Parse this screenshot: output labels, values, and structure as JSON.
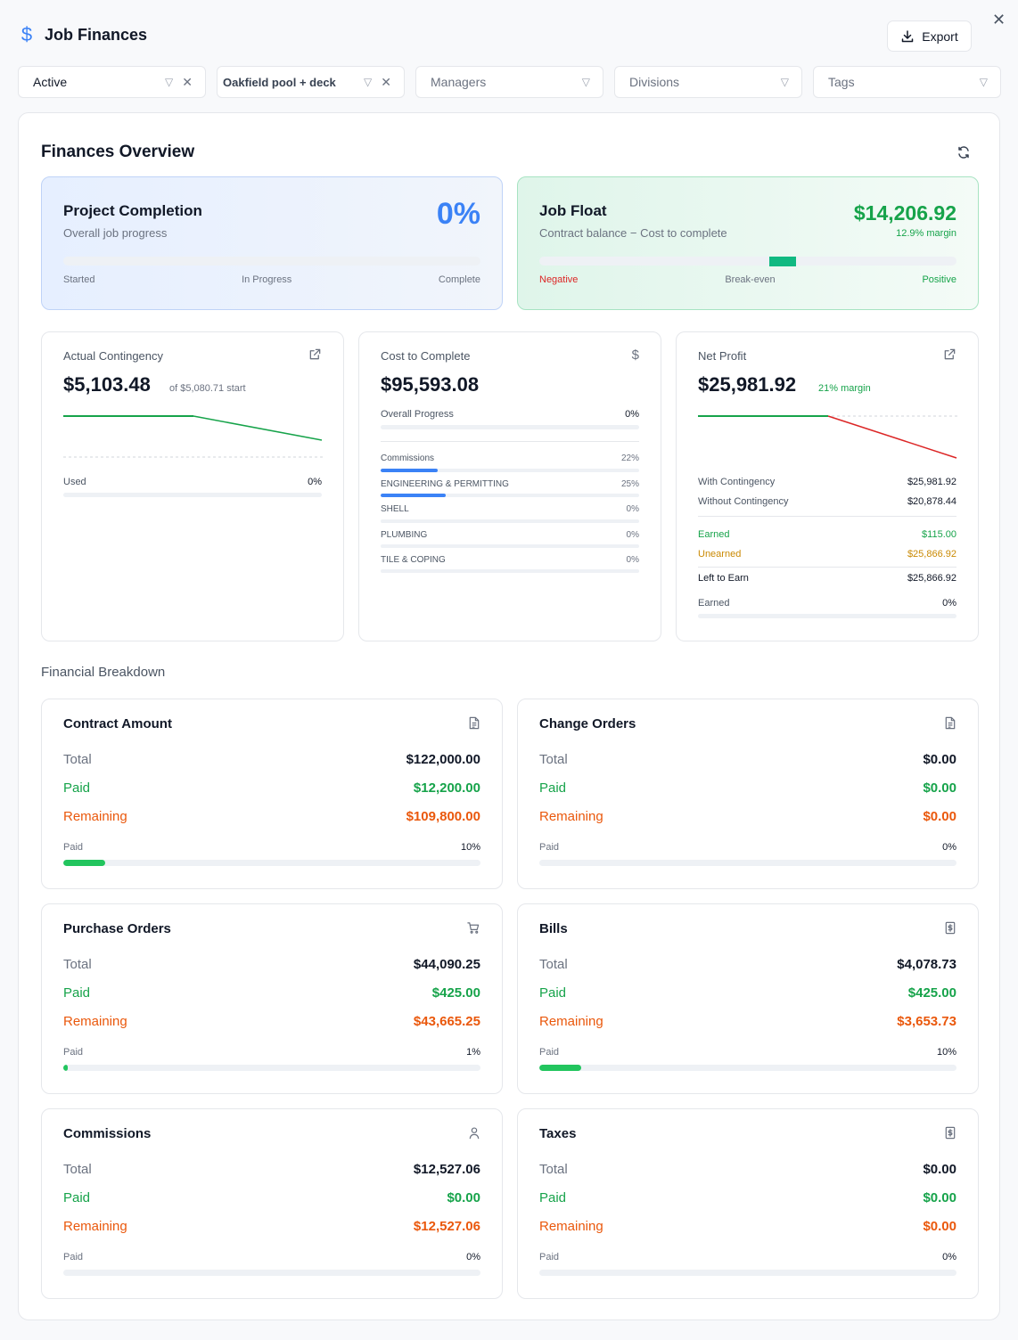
{
  "header": {
    "title": "Job Finances",
    "export_label": "Export"
  },
  "filters": [
    {
      "label": "Active",
      "clearable": true
    },
    {
      "label": "Oakfield pool + deck",
      "clearable": true
    },
    {
      "label": "Managers",
      "clearable": false
    },
    {
      "label": "Divisions",
      "clearable": false
    },
    {
      "label": "Tags",
      "clearable": false
    }
  ],
  "overview": {
    "title": "Finances Overview",
    "project_completion": {
      "title": "Project Completion",
      "subtitle": "Overall job progress",
      "value": "0%",
      "progress": 0,
      "scale": [
        "Started",
        "In Progress",
        "Complete"
      ]
    },
    "job_float": {
      "title": "Job Float",
      "subtitle": "Contract balance − Cost to complete",
      "value": "$14,206.92",
      "margin": "12.9% margin",
      "scale": [
        "Negative",
        "Break-even",
        "Positive"
      ]
    }
  },
  "actual_contingency": {
    "title": "Actual Contingency",
    "value": "$5,103.48",
    "sub": "of $5,080.71 start",
    "used_label": "Used",
    "used_value": "0%",
    "used_progress": 0
  },
  "cost_to_complete": {
    "title": "Cost to Complete",
    "value": "$95,593.08",
    "overall_label": "Overall Progress",
    "overall_value": "0%",
    "overall_progress": 0,
    "items": [
      {
        "label": "Commissions",
        "value": "22%",
        "progress": 22
      },
      {
        "label": "ENGINEERING & PERMITTING",
        "value": "25%",
        "progress": 25
      },
      {
        "label": "SHELL",
        "value": "0%",
        "progress": 0
      },
      {
        "label": "PLUMBING",
        "value": "0%",
        "progress": 0
      },
      {
        "label": "TILE & COPING",
        "value": "0%",
        "progress": 0
      }
    ]
  },
  "net_profit": {
    "title": "Net Profit",
    "value": "$25,981.92",
    "margin": "21% margin",
    "with_contingency_label": "With Contingency",
    "with_contingency": "$25,981.92",
    "without_contingency_label": "Without Contingency",
    "without_contingency": "$20,878.44",
    "earned_label": "Earned",
    "earned": "$115.00",
    "unearned_label": "Unearned",
    "unearned": "$25,866.92",
    "left_label": "Left to Earn",
    "left": "$25,866.92",
    "earned_pct_label": "Earned",
    "earned_pct": "0%",
    "earned_progress": 0
  },
  "breakdown": {
    "title": "Financial Breakdown",
    "total_label": "Total",
    "paid_label": "Paid",
    "remaining_label": "Remaining",
    "bar_label": "Paid",
    "cards": [
      {
        "title": "Contract Amount",
        "icon": "document-icon",
        "total": "$122,000.00",
        "paid": "$12,200.00",
        "remaining": "$109,800.00",
        "pct": "10%",
        "progress": 10
      },
      {
        "title": "Change Orders",
        "icon": "document-icon",
        "total": "$0.00",
        "paid": "$0.00",
        "remaining": "$0.00",
        "pct": "0%",
        "progress": 0
      },
      {
        "title": "Purchase Orders",
        "icon": "cart-icon",
        "total": "$44,090.25",
        "paid": "$425.00",
        "remaining": "$43,665.25",
        "pct": "1%",
        "progress": 1
      },
      {
        "title": "Bills",
        "icon": "receipt-icon",
        "total": "$4,078.73",
        "paid": "$425.00",
        "remaining": "$3,653.73",
        "pct": "10%",
        "progress": 10
      },
      {
        "title": "Commissions",
        "icon": "user-icon",
        "total": "$12,527.06",
        "paid": "$0.00",
        "remaining": "$12,527.06",
        "pct": "0%",
        "progress": 0
      },
      {
        "title": "Taxes",
        "icon": "receipt-icon",
        "total": "$0.00",
        "paid": "$0.00",
        "remaining": "$0.00",
        "pct": "0%",
        "progress": 0
      }
    ]
  },
  "colors": {
    "accent": "#3b82f6",
    "positive": "#16a34a",
    "negative": "#dc2626",
    "warning": "#ea580c"
  }
}
